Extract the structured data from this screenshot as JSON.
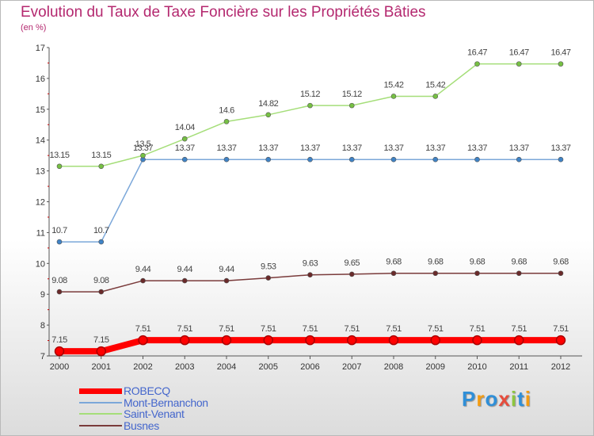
{
  "title": "Evolution du Taux de Taxe Foncière sur les Propriétés Bâties",
  "unit_label": "(en %)",
  "logo": {
    "text": "Proxiti",
    "colors": [
      "#2f8fd8",
      "#f39c12",
      "#2f8fd8",
      "#e74c3c",
      "#8dc63f",
      "#2f8fd8",
      "#f39c12"
    ]
  },
  "chart_data": {
    "type": "line",
    "x": [
      "2000",
      "2001",
      "2002",
      "2003",
      "2004",
      "2005",
      "2006",
      "2007",
      "2008",
      "2009",
      "2010",
      "2011",
      "2012"
    ],
    "ylim": [
      7,
      17
    ],
    "yticks": [
      "7",
      "8",
      "9",
      "10",
      "11",
      "12",
      "13",
      "14",
      "15",
      "16",
      "17"
    ],
    "grid": false,
    "legend_position": "bottom-left",
    "series": [
      {
        "name": "ROBECQ",
        "color": "#ff0000",
        "marker": "#dd0000",
        "width": 8,
        "values": [
          7.15,
          7.15,
          7.51,
          7.51,
          7.51,
          7.51,
          7.51,
          7.51,
          7.51,
          7.51,
          7.51,
          7.51,
          7.51
        ],
        "labels": [
          "7.15",
          "7.15",
          "7.51",
          "7.51",
          "7.51",
          "7.51",
          "7.51",
          "7.51",
          "7.51",
          "7.51",
          "7.51",
          "7.51",
          "7.51"
        ]
      },
      {
        "name": "Mont-Bernanchon",
        "color": "#7ba7d9",
        "marker": "#3f83c6",
        "width": 1.5,
        "values": [
          10.7,
          10.7,
          13.37,
          13.37,
          13.37,
          13.37,
          13.37,
          13.37,
          13.37,
          13.37,
          13.37,
          13.37,
          13.37
        ],
        "labels": [
          "10.7",
          "10.7",
          "13.37",
          "13.37",
          "13.37",
          "13.37",
          "13.37",
          "13.37",
          "13.37",
          "13.37",
          "13.37",
          "13.37",
          "13.37"
        ]
      },
      {
        "name": "Saint-Venant",
        "color": "#a5de79",
        "marker": "#76c043",
        "width": 1.5,
        "values": [
          13.15,
          13.15,
          13.5,
          14.04,
          14.6,
          14.82,
          15.12,
          15.12,
          15.42,
          15.42,
          16.47,
          16.47,
          16.47
        ],
        "labels": [
          "13.15",
          "13.15",
          "13.5",
          "14.04",
          "14.6",
          "14.82",
          "15.12",
          "15.12",
          "15.42",
          "15.42",
          "16.47",
          "16.47",
          "16.47"
        ]
      },
      {
        "name": "Busnes",
        "color": "#7a3b3b",
        "marker": "#6a2a2a",
        "width": 1.5,
        "values": [
          9.08,
          9.08,
          9.44,
          9.44,
          9.44,
          9.53,
          9.63,
          9.65,
          9.68,
          9.68,
          9.68,
          9.68,
          9.68
        ],
        "labels": [
          "9.08",
          "9.08",
          "9.44",
          "9.44",
          "9.44",
          "9.53",
          "9.63",
          "9.65",
          "9.68",
          "9.68",
          "9.68",
          "9.68",
          "9.68"
        ]
      }
    ]
  }
}
